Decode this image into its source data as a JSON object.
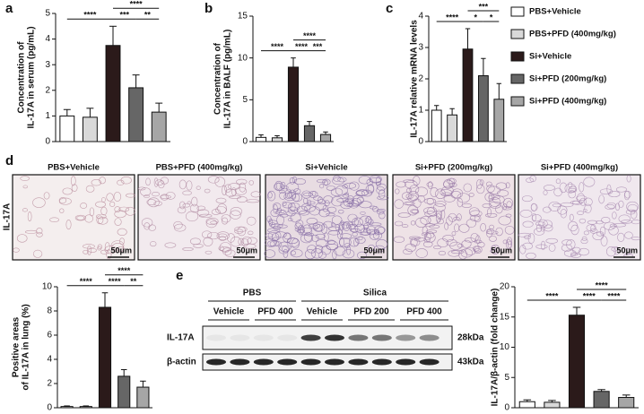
{
  "panel_labels": [
    "a",
    "b",
    "c",
    "d",
    "e"
  ],
  "legend": [
    {
      "name": "PBS+Vehicle",
      "color": "#ffffff"
    },
    {
      "name": "PBS+PFD (400mg/kg)",
      "color": "#d9d9d9"
    },
    {
      "name": "Si+Vehicle",
      "color": "#2b1a1a"
    },
    {
      "name": "Si+PFD (200mg/kg)",
      "color": "#666666"
    },
    {
      "name": "Si+PFD (400mg/kg)",
      "color": "#a6a6a6"
    }
  ],
  "chart_data": [
    {
      "type": "bar",
      "ylabel": [
        "Concentration of",
        "IL-17A in serum (pg/mL)"
      ],
      "values": [
        1.0,
        0.95,
        3.75,
        2.1,
        1.15
      ],
      "errors": [
        0.25,
        0.35,
        0.75,
        0.5,
        0.35
      ],
      "ylim": [
        0,
        5
      ],
      "yticks": [
        0,
        1,
        2,
        3,
        4,
        5
      ],
      "significance": [
        {
          "label": "****",
          "from": 0,
          "to": 2
        },
        {
          "label": "***",
          "from": 2,
          "to": 3
        },
        {
          "label": "**",
          "from": 3,
          "to": 4
        },
        {
          "label": "****",
          "from": 2,
          "to": 4
        }
      ]
    },
    {
      "type": "bar",
      "ylabel": [
        "Concentration of",
        "IL-17A in BALF (pg/mL)"
      ],
      "values": [
        0.5,
        0.45,
        8.9,
        1.9,
        0.85
      ],
      "errors": [
        0.3,
        0.25,
        1.1,
        0.5,
        0.3
      ],
      "ylim": [
        0,
        15
      ],
      "yticks": [
        0,
        5,
        10,
        15
      ],
      "significance": [
        {
          "label": "****",
          "from": 0,
          "to": 2
        },
        {
          "label": "****",
          "from": 2,
          "to": 3
        },
        {
          "label": "***",
          "from": 3,
          "to": 4
        },
        {
          "label": "****",
          "from": 2,
          "to": 4
        }
      ]
    },
    {
      "type": "bar",
      "ylabel": [
        "IL-17A relative mRNA levels"
      ],
      "values": [
        1.0,
        0.85,
        2.95,
        2.1,
        1.35
      ],
      "errors": [
        0.15,
        0.2,
        0.65,
        0.55,
        0.5
      ],
      "ylim": [
        0,
        4
      ],
      "yticks": [
        0,
        1,
        2,
        3,
        4
      ],
      "significance": [
        {
          "label": "****",
          "from": 0,
          "to": 2
        },
        {
          "label": "*",
          "from": 2,
          "to": 3
        },
        {
          "label": "*",
          "from": 3,
          "to": 4
        },
        {
          "label": "***",
          "from": 2,
          "to": 4
        }
      ]
    },
    {
      "type": "bar",
      "ylabel": [
        "Positive areas",
        "of IL-17A in lung (%)"
      ],
      "values": [
        0.1,
        0.1,
        8.3,
        2.6,
        1.7
      ],
      "errors": [
        0.05,
        0.05,
        1.2,
        0.55,
        0.5
      ],
      "ylim": [
        0,
        10
      ],
      "yticks": [
        0,
        2,
        4,
        6,
        8,
        10
      ],
      "significance": [
        {
          "label": "****",
          "from": 0,
          "to": 2
        },
        {
          "label": "****",
          "from": 2,
          "to": 3
        },
        {
          "label": "**",
          "from": 3,
          "to": 4
        },
        {
          "label": "****",
          "from": 2,
          "to": 4
        }
      ]
    },
    {
      "type": "bar",
      "ylabel": [
        "IL-17A/β-actin (fold change)"
      ],
      "values": [
        1.0,
        0.9,
        15.3,
        2.7,
        1.7
      ],
      "errors": [
        0.3,
        0.3,
        1.3,
        0.3,
        0.4
      ],
      "ylim": [
        0,
        20
      ],
      "yticks": [
        0,
        5,
        10,
        15,
        20
      ],
      "significance": [
        {
          "label": "****",
          "from": 0,
          "to": 2
        },
        {
          "label": "****",
          "from": 2,
          "to": 3
        },
        {
          "label": "****",
          "from": 3,
          "to": 4
        },
        {
          "label": "****",
          "from": 2,
          "to": 4
        }
      ]
    }
  ],
  "micrographs": {
    "stain": "IL-17A",
    "titles": [
      "PBS+Vehicle",
      "PBS+PFD (400mg/kg)",
      "Si+Vehicle",
      "Si+PFD (200mg/kg)",
      "Si+PFD (400mg/kg)"
    ],
    "scale_bar": "50μm"
  },
  "western_blot": {
    "groups": [
      {
        "name": "PBS",
        "lanes": [
          "Vehicle",
          "PFD 400"
        ]
      },
      {
        "name": "Silica",
        "lanes": [
          "Vehicle",
          "PFD 200",
          "PFD 400"
        ]
      }
    ],
    "rows": [
      {
        "name": "IL-17A",
        "size": "28kDa"
      },
      {
        "name": "β-actin",
        "size": "43kDa"
      }
    ]
  }
}
